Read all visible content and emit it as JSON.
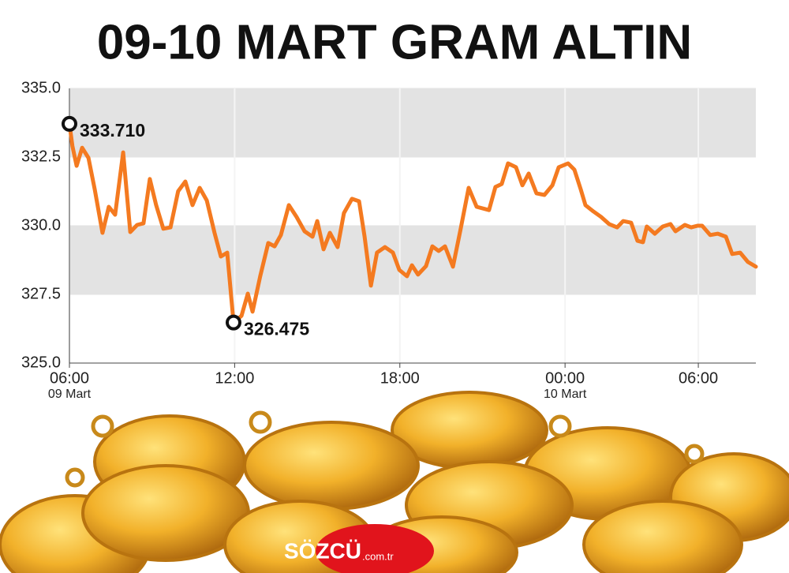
{
  "chart_data": {
    "type": "line",
    "title": "09-10 MART GRAM ALTIN",
    "color": "#f47a20",
    "x": [
      0,
      0.11,
      0.26,
      0.46,
      0.69,
      0.92,
      1.2,
      1.43,
      1.66,
      1.95,
      2.21,
      2.46,
      2.69,
      2.92,
      3.15,
      3.41,
      3.67,
      3.95,
      4.21,
      4.47,
      4.73,
      4.99,
      5.27,
      5.5,
      5.73,
      5.96,
      6.25,
      6.48,
      6.65,
      6.93,
      7.22,
      7.45,
      7.68,
      7.97,
      8.25,
      8.54,
      8.83,
      9.0,
      9.23,
      9.46,
      9.74,
      9.97,
      10.26,
      10.52,
      10.72,
      10.95,
      11.17,
      11.46,
      11.75,
      11.98,
      12.26,
      12.44,
      12.66,
      12.95,
      13.18,
      13.41,
      13.64,
      13.93,
      14.21,
      14.5,
      14.79,
      15.24,
      15.47,
      15.7,
      15.93,
      16.22,
      16.45,
      16.68,
      16.96,
      17.25,
      17.54,
      17.77,
      18.11,
      18.34,
      18.57,
      18.74,
      19.03,
      19.31,
      19.6,
      19.89,
      20.11,
      20.4,
      20.63,
      20.83,
      20.97,
      21.26,
      21.55,
      21.83,
      22.01,
      22.35,
      22.58,
      22.81,
      22.98,
      23.27,
      23.55,
      23.84,
      24.07,
      24.36,
      24.64,
      24.93
    ],
    "values": [
      333.71,
      332.9,
      332.18,
      332.84,
      332.47,
      331.32,
      329.74,
      330.69,
      330.4,
      332.67,
      329.77,
      330.03,
      330.09,
      331.7,
      330.75,
      329.89,
      329.94,
      331.26,
      331.61,
      330.75,
      331.38,
      330.92,
      329.74,
      328.88,
      329.02,
      326.475,
      326.72,
      327.53,
      326.87,
      328.16,
      329.37,
      329.25,
      329.66,
      330.75,
      330.32,
      329.8,
      329.6,
      330.17,
      329.14,
      329.74,
      329.22,
      330.46,
      330.98,
      330.89,
      329.6,
      327.82,
      329.02,
      329.22,
      329.02,
      328.39,
      328.16,
      328.56,
      328.22,
      328.53,
      329.25,
      329.08,
      329.25,
      328.51,
      329.89,
      331.38,
      330.69,
      330.57,
      331.41,
      331.52,
      332.27,
      332.13,
      331.47,
      331.9,
      331.18,
      331.12,
      331.47,
      332.13,
      332.27,
      332.04,
      331.32,
      330.75,
      330.52,
      330.32,
      330.06,
      329.94,
      330.17,
      330.11,
      329.45,
      329.4,
      329.97,
      329.71,
      329.97,
      330.06,
      329.8,
      330.03,
      329.94,
      330.0,
      330.0,
      329.66,
      329.71,
      329.6,
      328.97,
      329.02,
      328.68,
      328.51
    ],
    "xlim": [
      0,
      24.93
    ],
    "ylim": [
      325,
      335
    ],
    "xticks": [
      {
        "value": 0,
        "label": "06:00",
        "date": "09 Mart"
      },
      {
        "value": 6,
        "label": "12:00"
      },
      {
        "value": 12,
        "label": "18:00"
      },
      {
        "value": 18,
        "label": "00:00",
        "date": "10 Mart"
      },
      {
        "value": 22.84,
        "label": "06:00"
      }
    ],
    "yticks": [
      {
        "value": 325,
        "label": "325.0"
      },
      {
        "value": 327.5,
        "label": "327.5"
      },
      {
        "value": 330,
        "label": "330.0"
      },
      {
        "value": 332.5,
        "label": "332.5"
      },
      {
        "value": 335,
        "label": "335.0"
      }
    ],
    "bands": true,
    "annotations": [
      {
        "x": 0,
        "y": 333.71,
        "label": "333.710"
      },
      {
        "x": 5.96,
        "y": 326.475,
        "label": "326.475"
      }
    ],
    "logo": {
      "name": "SÖZCÜ",
      "domain": ".com.tr"
    }
  }
}
